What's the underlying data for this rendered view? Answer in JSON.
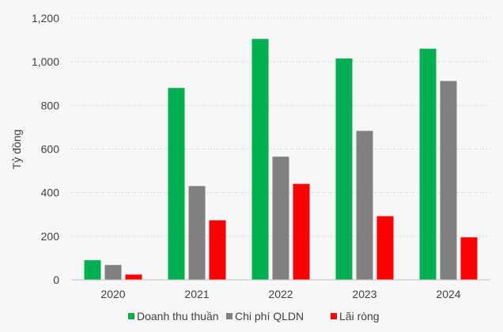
{
  "chart_data": {
    "type": "bar",
    "ylabel": "Tỷ đồng",
    "categories": [
      "2020",
      "2021",
      "2022",
      "2023",
      "2024"
    ],
    "ylim": [
      0,
      1200
    ],
    "yticks": [
      "0",
      "200",
      "400",
      "600",
      "800",
      "1,000",
      "1,200"
    ],
    "ytick_values": [
      0,
      200,
      400,
      600,
      800,
      1000,
      1200
    ],
    "grid": true,
    "legend_position": "bottom",
    "series": [
      {
        "name": "Doanh thu thuần",
        "color": "#00b050",
        "values": [
          90,
          880,
          1105,
          1015,
          1060
        ]
      },
      {
        "name": "Chi phí QLDN",
        "color": "#808080",
        "values": [
          68,
          430,
          565,
          683,
          912
        ]
      },
      {
        "name": "Lãi ròng",
        "color": "#ff0000",
        "values": [
          24,
          273,
          440,
          292,
          195
        ]
      }
    ]
  }
}
